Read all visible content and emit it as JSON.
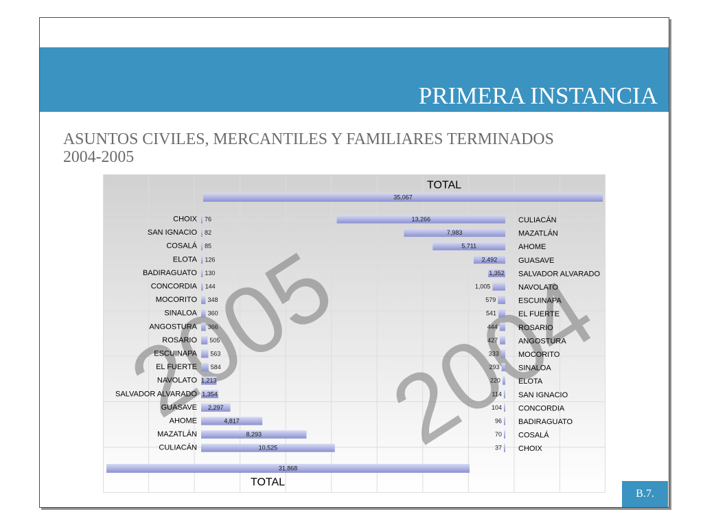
{
  "slide": {
    "title": "PRIMERA INSTANCIA",
    "subtitle": [
      "ASUNTOS CIVILES, MERCANTILES Y FAMILIARES TERMINADOS",
      "2004-2005"
    ],
    "page_number": "B.7."
  },
  "colors": {
    "header_band": "#3a93c1",
    "page_number_box": "#3a93c1",
    "title_text": "#ffffff",
    "subtitle_text": "#6b6b6b",
    "chart_background_top": "#d1d1d1",
    "chart_background_bottom": "#ffffff",
    "grid": "#dcdcdc",
    "bar_light": "#d8dbf3",
    "bar_dark": "#8a91d0",
    "label_text": "#000000",
    "value_text": "#1a1a1a",
    "watermark": "#808080"
  },
  "chart_data": {
    "type": "bar",
    "orientation": "horizontal",
    "grid": true,
    "legend": "none",
    "series": [
      {
        "name": "2005",
        "side": "left",
        "categories": [
          "CHOIX",
          "SAN IGNACIO",
          "COSALÁ",
          "ELOTA",
          "BADIRAGUATO",
          "CONCORDIA",
          "MOCORITO",
          "SINALOA",
          "ANGOSTURA",
          "ROSARIO",
          "ESCUINAPA",
          "EL FUERTE",
          "NAVOLATO",
          "SALVADOR ALVARADO",
          "GUASAVE",
          "AHOME",
          "MAZATLÁN",
          "CULIACÁN"
        ],
        "values": [
          76,
          82,
          85,
          126,
          130,
          144,
          348,
          360,
          366,
          505,
          563,
          584,
          1213,
          1354,
          2297,
          4817,
          8293,
          10525
        ],
        "total_label": "TOTAL",
        "total": 31868
      },
      {
        "name": "2004",
        "side": "right",
        "categories": [
          "CULIACÁN",
          "MAZATLÁN",
          "AHOME",
          "GUASAVE",
          "SALVADOR ALVARADO",
          "NAVOLATO",
          "ESCUINAPA",
          "EL FUERTE",
          "ROSARIO",
          "ANGOSTURA",
          "MOCORITO",
          "SINALOA",
          "ELOTA",
          "SAN IGNACIO",
          "CONCORDIA",
          "BADIRAGUATO",
          "COSALÁ",
          "CHOIX"
        ],
        "values": [
          13266,
          7983,
          5711,
          2492,
          1352,
          1005,
          579,
          541,
          444,
          427,
          333,
          293,
          220,
          114,
          104,
          96,
          70,
          37
        ],
        "total_label": "TOTAL",
        "total": 35067
      }
    ]
  }
}
